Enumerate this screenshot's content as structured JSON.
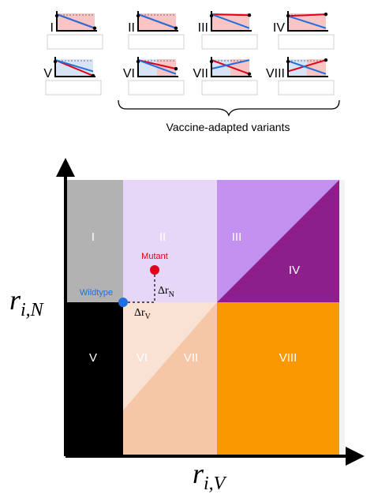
{
  "thumbnails": [
    {
      "numeral": "I"
    },
    {
      "numeral": "II"
    },
    {
      "numeral": "III"
    },
    {
      "numeral": "IV"
    },
    {
      "numeral": "V"
    },
    {
      "numeral": "VI"
    },
    {
      "numeral": "VII"
    },
    {
      "numeral": "VIII"
    }
  ],
  "brace_label": "Vaccine-adapted variants",
  "regions": [
    {
      "label": "I",
      "color": "#b2b2b2"
    },
    {
      "label": "II",
      "color": "#e6d6f7"
    },
    {
      "label": "III",
      "color": "#c392f0"
    },
    {
      "label": "IV",
      "color": "#8c1f8c"
    },
    {
      "label": "V",
      "color": "#000000"
    },
    {
      "label": "VI",
      "color": "#f9e1d4"
    },
    {
      "label": "VII",
      "color": "#f5c7a6"
    },
    {
      "label": "VIII",
      "color": "#f99800"
    }
  ],
  "points": {
    "wildtype": {
      "label": "Wildtype",
      "color": "#1f6fe0"
    },
    "mutant": {
      "label": "Mutant",
      "color": "#e0001a"
    }
  },
  "deltas": {
    "delta_n": {
      "symbol": "Δr",
      "sub": "N"
    },
    "delta_v": {
      "symbol": "Δr",
      "sub": "V"
    }
  },
  "axes": {
    "y": {
      "base": "r",
      "sub": "i,N"
    },
    "x": {
      "base": "r",
      "sub": "i,V"
    }
  },
  "colors": {
    "thumb_red": "#e0001a",
    "thumb_blue": "#1f6fe0",
    "thumb_pink": "#f9c4c4",
    "thumb_lightblue": "#d6e4f5"
  }
}
